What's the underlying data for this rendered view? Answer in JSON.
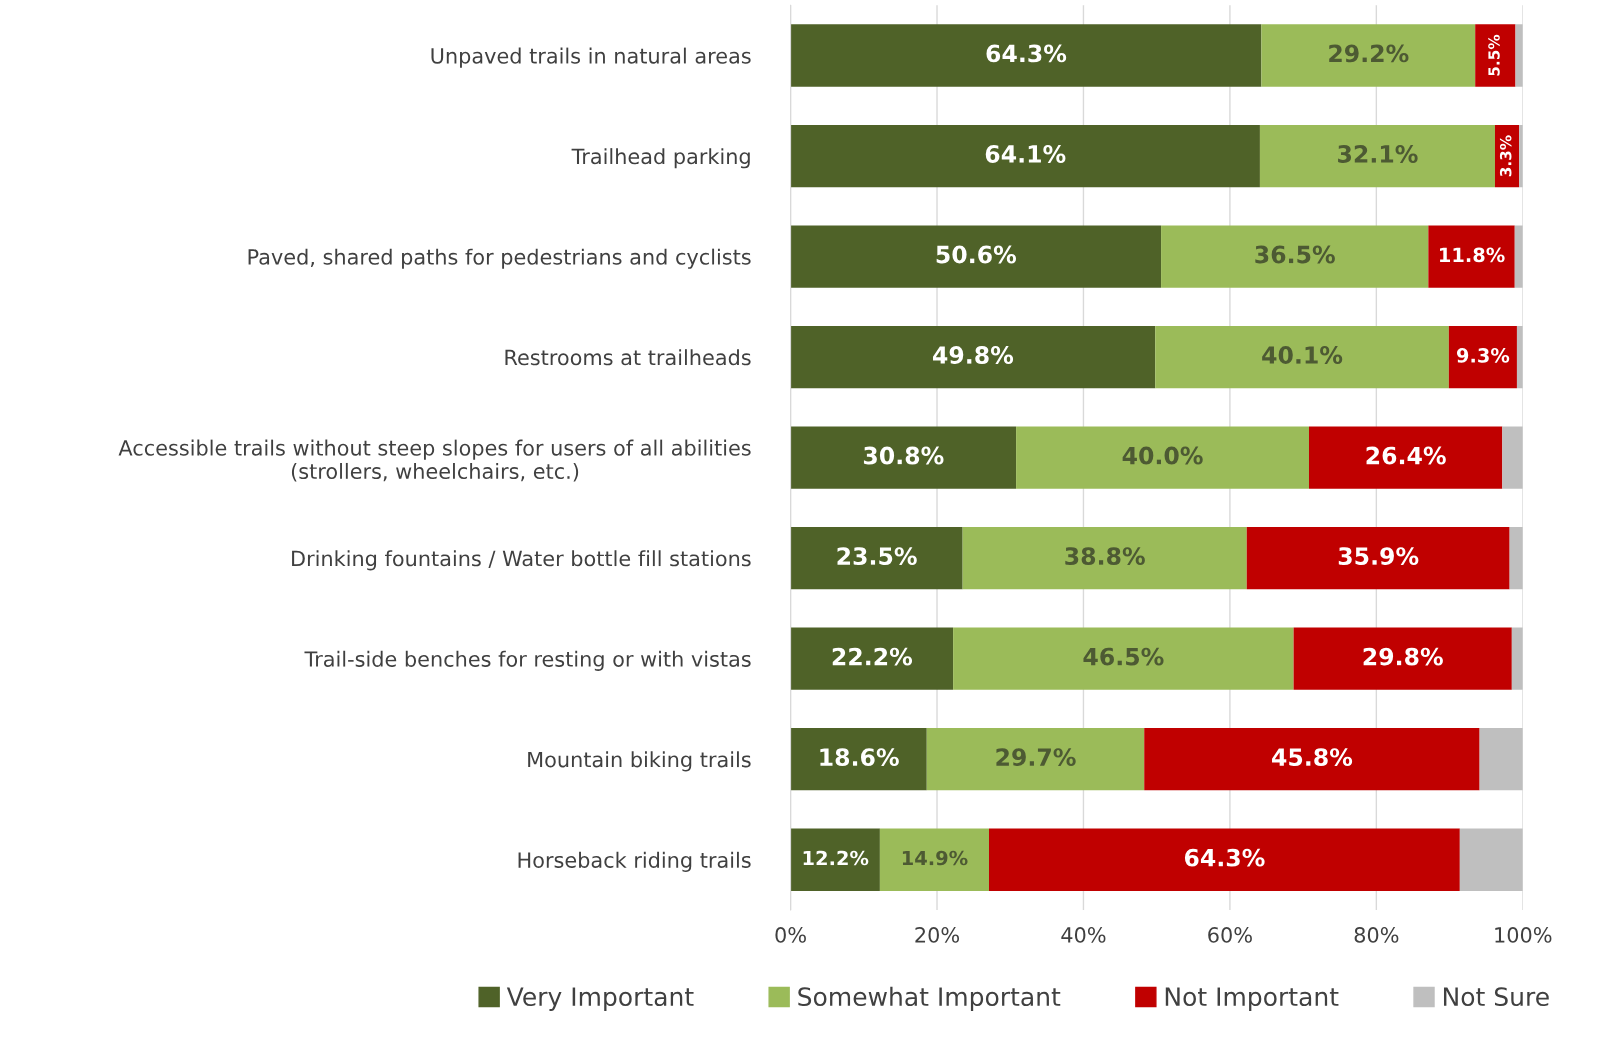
{
  "chart_data": {
    "type": "bar",
    "orientation": "horizontal",
    "stacked": true,
    "categories": [
      "Unpaved trails in natural areas",
      "Trailhead parking",
      "Paved, shared paths for pedestrians and cyclists",
      "Restrooms at trailheads",
      "Accessible trails without steep slopes for users of all abilities\n(strollers, wheelchairs, etc.)",
      "Drinking fountains / Water bottle fill stations",
      "Trail-side benches for resting or with vistas",
      "Mountain biking trails",
      "Horseback riding trails"
    ],
    "series": [
      {
        "name": "Very Important",
        "color": "#4f6228",
        "values": [
          64.3,
          64.1,
          50.6,
          49.8,
          30.8,
          23.5,
          22.2,
          18.6,
          12.2
        ],
        "value_labels": [
          "64.3%",
          "64.1%",
          "50.6%",
          "49.8%",
          "30.8%",
          "23.5%",
          "22.2%",
          "18.6%",
          "12.2%"
        ]
      },
      {
        "name": "Somewhat Important",
        "color": "#9bbb59",
        "values": [
          29.2,
          32.1,
          36.5,
          40.1,
          40.0,
          38.8,
          46.5,
          29.7,
          14.9
        ],
        "value_labels": [
          "29.2%",
          "32.1%",
          "36.5%",
          "40.1%",
          "40.0%",
          "38.8%",
          "46.5%",
          "29.7%",
          "14.9%"
        ]
      },
      {
        "name": "Not Important",
        "color": "#c00000",
        "values": [
          5.5,
          3.3,
          11.8,
          9.3,
          26.4,
          35.9,
          29.8,
          45.8,
          64.3
        ],
        "value_labels": [
          "5.5%",
          "3.3%",
          "11.8%",
          "9.3%",
          "26.4%",
          "35.9%",
          "29.8%",
          "45.8%",
          "64.3%"
        ]
      },
      {
        "name": "Not Sure",
        "color": "#bfbfbf",
        "values": [
          1.0,
          0.5,
          1.1,
          0.8,
          2.8,
          1.8,
          1.5,
          5.9,
          8.6
        ]
      }
    ],
    "xlim": [
      0,
      100
    ],
    "xticks": [
      {
        "value": 0,
        "label": "0%"
      },
      {
        "value": 20,
        "label": "20%"
      },
      {
        "value": 40,
        "label": "40%"
      },
      {
        "value": 60,
        "label": "60%"
      },
      {
        "value": 80,
        "label": "80%"
      },
      {
        "value": 100,
        "label": "100%"
      }
    ],
    "grid": "x",
    "legend": "bottom"
  }
}
